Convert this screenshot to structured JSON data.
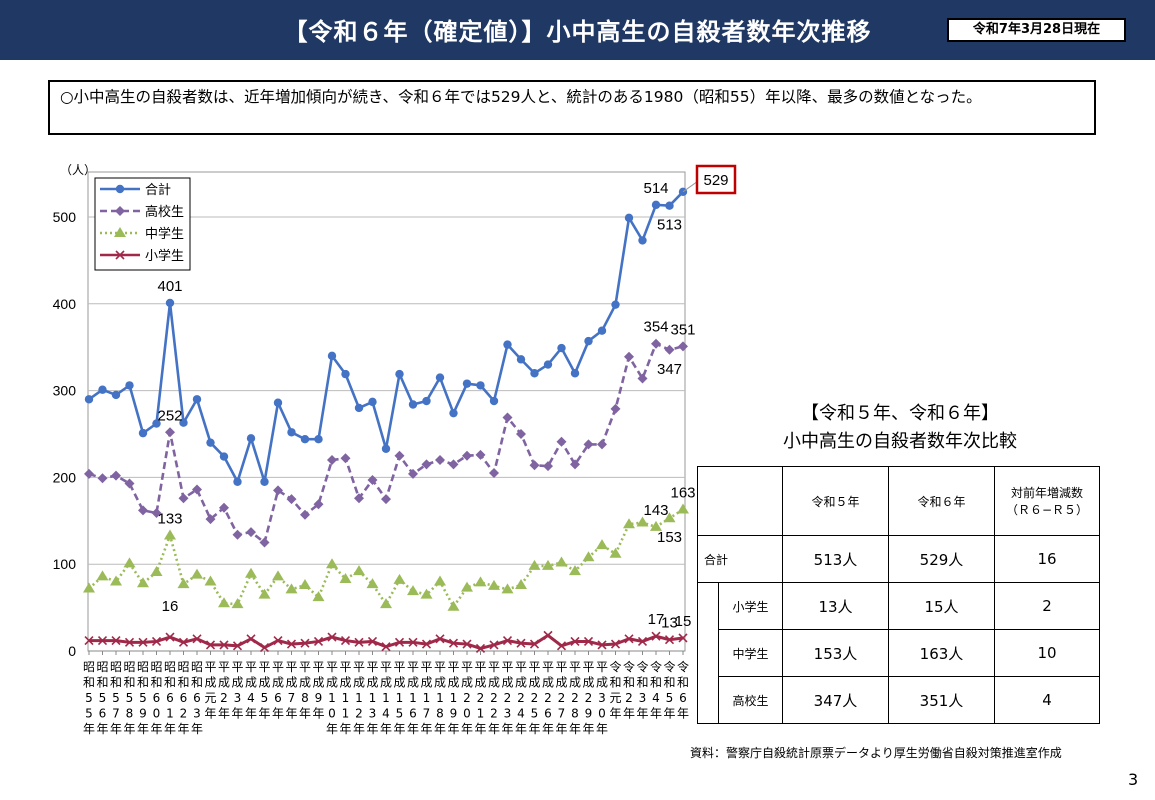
{
  "header": {
    "title": "【令和６年（確定値）】小中高生の自殺者数年次推移",
    "as_of": "令和7年3月28日現在",
    "bg_color": "#1f3864"
  },
  "summary": "○小中高生の自殺者数は、近年増加傾向が続き、令和６年では529人と、統計のある1980（昭和55）年以降、最多の数値となった。",
  "chart_data": {
    "type": "line",
    "ylabel": "（人）",
    "ylim": [
      0,
      550
    ],
    "yticks": [
      0,
      100,
      200,
      300,
      400,
      500
    ],
    "grid": true,
    "legend_placement": "top-left",
    "categories": [
      "昭和55年",
      "昭和56年",
      "昭和57年",
      "昭和58年",
      "昭和59年",
      "昭和60年",
      "昭和61年",
      "昭和62年",
      "昭和63年",
      "平成元年",
      "平成2年",
      "平成3年",
      "平成4年",
      "平成5年",
      "平成6年",
      "平成7年",
      "平成8年",
      "平成9年",
      "平成10年",
      "平成11年",
      "平成12年",
      "平成13年",
      "平成14年",
      "平成15年",
      "平成16年",
      "平成17年",
      "平成18年",
      "平成19年",
      "平成20年",
      "平成21年",
      "平成22年",
      "平成23年",
      "平成24年",
      "平成25年",
      "平成26年",
      "平成27年",
      "平成28年",
      "平成29年",
      "平成30年",
      "令和元年",
      "令和2年",
      "令和3年",
      "令和4年",
      "令和5年",
      "令和6年"
    ],
    "series": [
      {
        "name": "合計",
        "color": "#4472c4",
        "style": "solid",
        "marker": "circle",
        "values": [
          290,
          301,
          295,
          306,
          251,
          262,
          401,
          263,
          290,
          240,
          224,
          195,
          245,
          195,
          286,
          252,
          244,
          244,
          340,
          319,
          280,
          287,
          233,
          319,
          284,
          288,
          315,
          274,
          308,
          306,
          288,
          353,
          336,
          320,
          330,
          349,
          320,
          357,
          369,
          399,
          499,
          473,
          514,
          513,
          529
        ]
      },
      {
        "name": "高校生",
        "color": "#8064a2",
        "style": "dashed",
        "marker": "diamond",
        "values": [
          204,
          199,
          202,
          193,
          162,
          159,
          252,
          176,
          186,
          152,
          165,
          134,
          137,
          125,
          185,
          175,
          157,
          169,
          220,
          222,
          176,
          197,
          175,
          225,
          204,
          215,
          220,
          215,
          225,
          226,
          205,
          269,
          250,
          214,
          213,
          241,
          215,
          238,
          238,
          279,
          339,
          314,
          354,
          347,
          351
        ]
      },
      {
        "name": "中学生",
        "color": "#9bbb59",
        "style": "dotted",
        "marker": "triangle",
        "values": [
          72,
          86,
          80,
          101,
          78,
          91,
          133,
          77,
          88,
          80,
          55,
          54,
          89,
          65,
          86,
          71,
          76,
          62,
          100,
          83,
          92,
          77,
          54,
          82,
          69,
          65,
          80,
          51,
          73,
          79,
          75,
          71,
          76,
          98,
          98,
          102,
          92,
          108,
          122,
          112,
          146,
          148,
          143,
          153,
          163
        ]
      },
      {
        "name": "小学生",
        "color": "#a0294a",
        "style": "solid",
        "marker": "x",
        "values": [
          12,
          12,
          12,
          10,
          10,
          11,
          16,
          10,
          14,
          7,
          7,
          6,
          14,
          4,
          12,
          8,
          9,
          11,
          16,
          12,
          10,
          11,
          5,
          10,
          10,
          8,
          14,
          9,
          8,
          3,
          7,
          12,
          9,
          8,
          18,
          6,
          11,
          11,
          7,
          8,
          14,
          11,
          17,
          13,
          15
        ]
      }
    ],
    "annotations": [
      {
        "text": "401",
        "series": 0,
        "index": 6,
        "pos": "above"
      },
      {
        "text": "252",
        "series": 1,
        "index": 6,
        "pos": "above"
      },
      {
        "text": "133",
        "series": 2,
        "index": 6,
        "pos": "above"
      },
      {
        "text": "16",
        "series": 3,
        "index": 6,
        "pos": "above2"
      },
      {
        "text": "514",
        "series": 0,
        "index": 42,
        "pos": "above"
      },
      {
        "text": "513",
        "series": 0,
        "index": 43,
        "pos": "below"
      },
      {
        "text": "529",
        "series": 0,
        "index": 44,
        "pos": "boxed",
        "box_color": "#c00000"
      },
      {
        "text": "354",
        "series": 1,
        "index": 42,
        "pos": "above"
      },
      {
        "text": "351",
        "series": 1,
        "index": 44,
        "pos": "above"
      },
      {
        "text": "347",
        "series": 1,
        "index": 43,
        "pos": "below"
      },
      {
        "text": "143",
        "series": 2,
        "index": 42,
        "pos": "above"
      },
      {
        "text": "163",
        "series": 2,
        "index": 44,
        "pos": "above"
      },
      {
        "text": "153",
        "series": 2,
        "index": 43,
        "pos": "below"
      },
      {
        "text": "17",
        "series": 3,
        "index": 42,
        "pos": "above"
      },
      {
        "text": "13",
        "series": 3,
        "index": 43,
        "pos": "above"
      },
      {
        "text": "15",
        "series": 3,
        "index": 44,
        "pos": "above"
      }
    ]
  },
  "table": {
    "title1": "【令和５年、令和６年】",
    "title2": "小中高生の自殺者数年次比較",
    "headers": [
      "令和５年",
      "令和６年",
      "対前年増減数",
      "（Ｒ６−Ｒ５）"
    ],
    "rows": [
      {
        "label": "合計",
        "r5": "513人",
        "r6": "529人",
        "diff": "16"
      },
      {
        "label": "小学生",
        "r5": "13人",
        "r6": "15人",
        "diff": "2"
      },
      {
        "label": "中学生",
        "r5": "153人",
        "r6": "163人",
        "diff": "10"
      },
      {
        "label": "高校生",
        "r5": "347人",
        "r6": "351人",
        "diff": "4"
      }
    ]
  },
  "source": "資料：警察庁自殺統計原票データより厚生労働省自殺対策推進室作成",
  "page_number": "3"
}
